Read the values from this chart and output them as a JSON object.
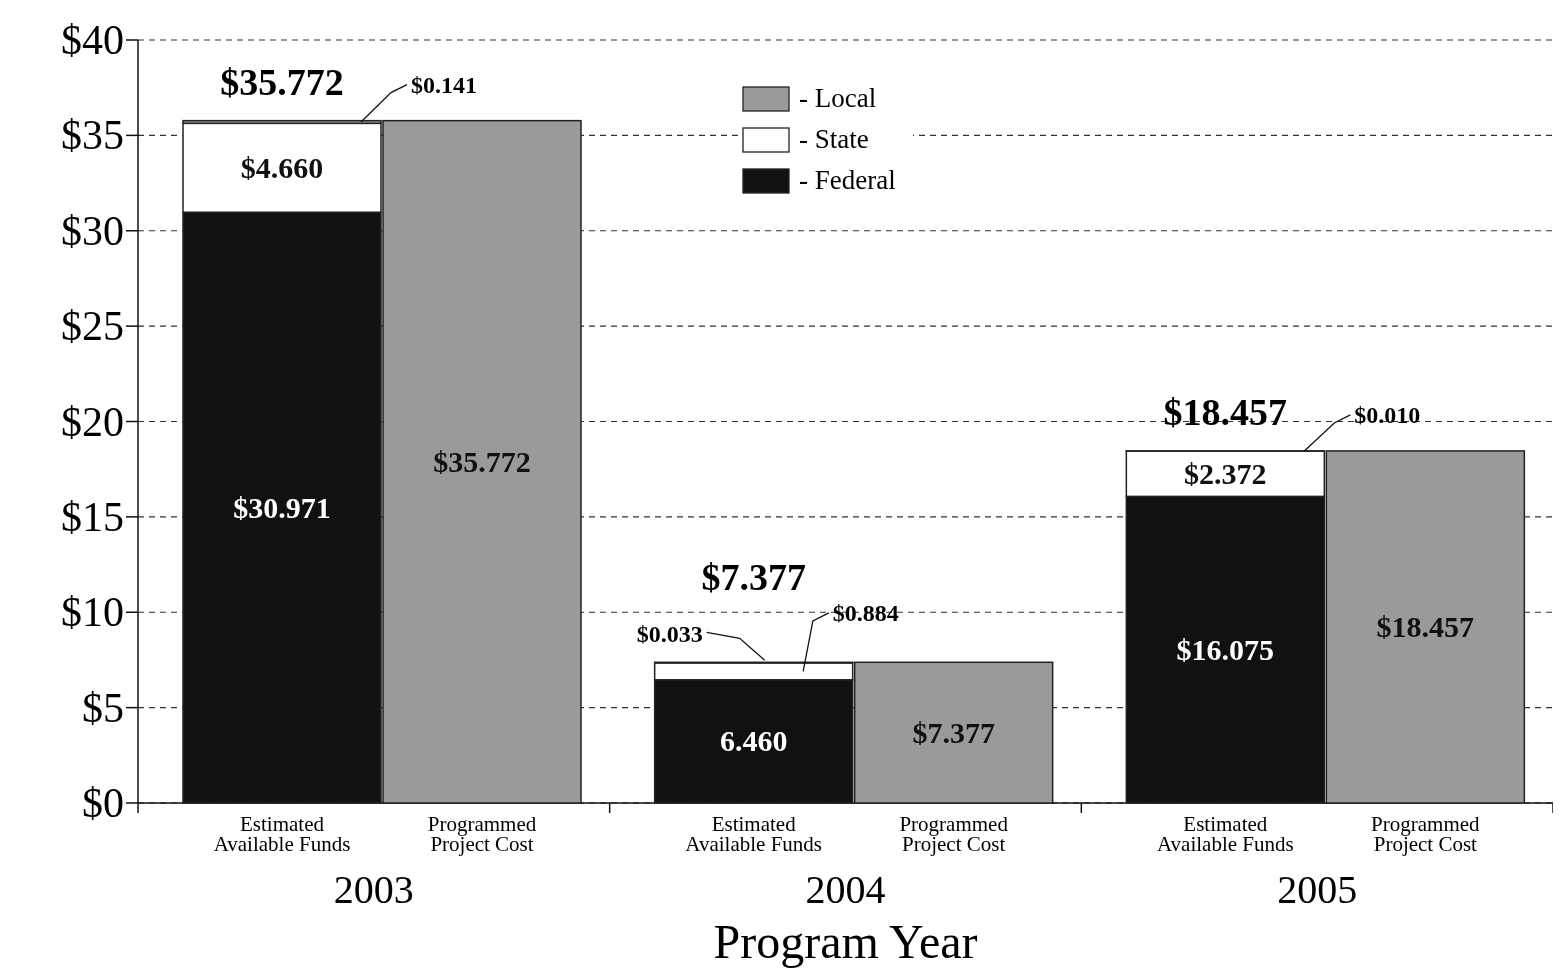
{
  "chart_data": {
    "type": "bar",
    "stacked": true,
    "xlabel": "Program Year",
    "categories": [
      "Estimated Available Funds",
      "Programmed Project Cost",
      "Estimated Available Funds",
      "Programmed Project Cost",
      "Estimated Available Funds",
      "Programmed Project Cost"
    ],
    "annotations": [
      "2003",
      "2004",
      "2005"
    ],
    "series": [
      {
        "name": "- Federal",
        "color": "#111111",
        "values": [
          30.971,
          0,
          6.46,
          0,
          16.075,
          0
        ],
        "value_labels": [
          "$30.971",
          null,
          "6.460",
          null,
          "$16.075",
          null
        ]
      },
      {
        "name": "- State",
        "color": "#ffffff",
        "values": [
          4.66,
          0,
          0.884,
          0,
          2.372,
          0
        ],
        "value_labels": [
          "$4.660",
          null,
          "$0.884",
          null,
          "$2.372",
          null
        ]
      },
      {
        "name": "- Local",
        "color": "#9a9a9a",
        "values": [
          0.141,
          35.772,
          0.033,
          7.377,
          0.01,
          18.457
        ],
        "value_labels": [
          "$0.141",
          "$35.772",
          "$0.033",
          "$7.377",
          "$0.010",
          "$18.457"
        ]
      }
    ],
    "totals": [
      "$35.772",
      null,
      "$7.377",
      null,
      "$18.457",
      null
    ],
    "ylim": [
      0,
      40
    ],
    "yticks": [
      {
        "value": 0,
        "label": "$0"
      },
      {
        "value": 5,
        "label": "$5"
      },
      {
        "value": 10,
        "label": "$10"
      },
      {
        "value": 15,
        "label": "$15"
      },
      {
        "value": 20,
        "label": "$20"
      },
      {
        "value": 25,
        "label": "$25"
      },
      {
        "value": 30,
        "label": "$30"
      },
      {
        "value": 35,
        "label": "$35"
      },
      {
        "value": 40,
        "label": "$40"
      }
    ],
    "grid": "y",
    "legend": "top"
  }
}
